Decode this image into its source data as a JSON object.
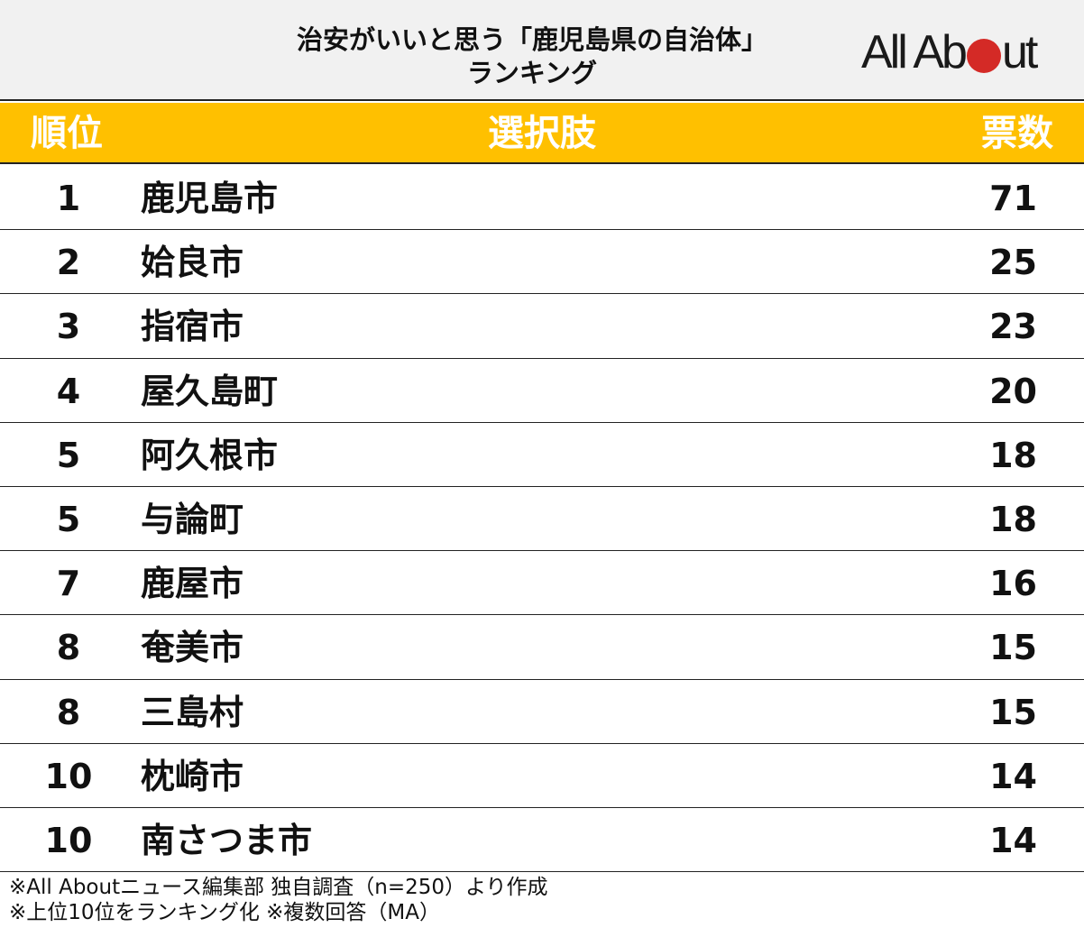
{
  "header": {
    "title_line1": "治安がいいと思う「鹿児島県の自治体」",
    "title_line2": "ランキング",
    "logo": {
      "prefix": "All Ab",
      "suffix": "ut",
      "dot_color": "#d42a26"
    }
  },
  "colors": {
    "accent": "#ffc000",
    "header_bg": "#f1f1f1",
    "text": "#111111"
  },
  "columns": {
    "rank": "順位",
    "choice": "選択肢",
    "votes": "票数"
  },
  "chart_data": {
    "type": "table",
    "title": "治安がいいと思う「鹿児島県の自治体」ランキング",
    "columns": [
      "順位",
      "選択肢",
      "票数"
    ],
    "rows": [
      {
        "rank": "1",
        "name": "鹿児島市",
        "votes": 71
      },
      {
        "rank": "2",
        "name": "姶良市",
        "votes": 25
      },
      {
        "rank": "3",
        "name": "指宿市",
        "votes": 23
      },
      {
        "rank": "4",
        "name": "屋久島町",
        "votes": 20
      },
      {
        "rank": "5",
        "name": "阿久根市",
        "votes": 18
      },
      {
        "rank": "5",
        "name": "与論町",
        "votes": 18
      },
      {
        "rank": "7",
        "name": "鹿屋市",
        "votes": 16
      },
      {
        "rank": "8",
        "name": "奄美市",
        "votes": 15
      },
      {
        "rank": "8",
        "name": "三島村",
        "votes": 15
      },
      {
        "rank": "10",
        "name": "枕崎市",
        "votes": 14
      },
      {
        "rank": "10",
        "name": "南さつま市",
        "votes": 14
      }
    ]
  },
  "footer": {
    "note1": "※All Aboutニュース編集部 独自調査（n=250）より作成",
    "note2": "※上位10位をランキング化 ※複数回答（MA）"
  }
}
